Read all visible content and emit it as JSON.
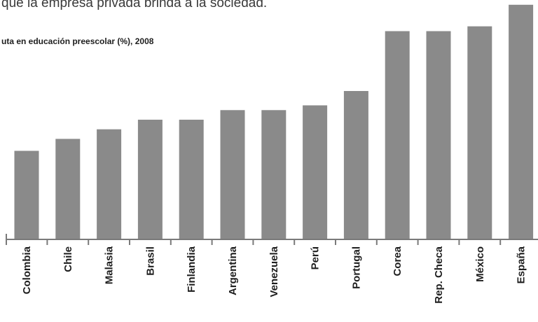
{
  "page": {
    "top_text": "que la empresa privada brinda a la sociedad."
  },
  "chart_data": {
    "type": "bar",
    "title": "uta  en educación preescolar (%), 2008",
    "xlabel": "",
    "ylabel": "",
    "categories": [
      "Colombia",
      "Chile",
      "Malasia",
      "Brasil",
      "Finlandia",
      "Argentina",
      "Venezuela",
      "Perú",
      "Portugal",
      "Corea",
      "Rep.  Checa",
      "México",
      "España"
    ],
    "values": [
      37,
      42,
      46,
      50,
      50,
      54,
      54,
      56,
      62,
      87,
      87,
      89,
      98
    ],
    "ylim": [
      0,
      100
    ],
    "grid": false,
    "colors": {
      "bar": "#8a8a8a",
      "axis": "#7a7a7a",
      "text": "#1e1e1e"
    }
  }
}
